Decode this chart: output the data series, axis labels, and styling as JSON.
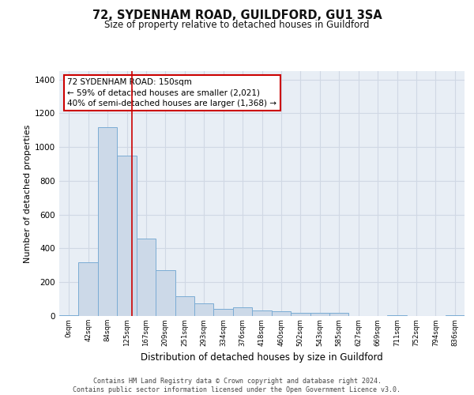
{
  "title": "72, SYDENHAM ROAD, GUILDFORD, GU1 3SA",
  "subtitle": "Size of property relative to detached houses in Guildford",
  "xlabel": "Distribution of detached houses by size in Guildford",
  "ylabel": "Number of detached properties",
  "footer_line1": "Contains HM Land Registry data © Crown copyright and database right 2024.",
  "footer_line2": "Contains public sector information licensed under the Open Government Licence v3.0.",
  "bar_labels": [
    "0sqm",
    "42sqm",
    "84sqm",
    "125sqm",
    "167sqm",
    "209sqm",
    "251sqm",
    "293sqm",
    "334sqm",
    "376sqm",
    "418sqm",
    "460sqm",
    "502sqm",
    "543sqm",
    "585sqm",
    "627sqm",
    "669sqm",
    "711sqm",
    "752sqm",
    "794sqm",
    "836sqm"
  ],
  "bar_values": [
    3,
    320,
    1120,
    950,
    460,
    270,
    115,
    75,
    40,
    50,
    35,
    30,
    20,
    20,
    20,
    0,
    0,
    5,
    0,
    0,
    3
  ],
  "bar_color": "#ccd9e8",
  "bar_edge_color": "#7bacd4",
  "grid_color": "#d0d8e4",
  "bg_color": "#e8eef5",
  "annotation_text": "72 SYDENHAM ROAD: 150sqm\n← 59% of detached houses are smaller (2,021)\n40% of semi-detached houses are larger (1,368) →",
  "annotation_box_facecolor": "#ffffff",
  "annotation_border_color": "#cc0000",
  "vline_color": "#cc0000",
  "vline_x_index": 3.25,
  "ylim": [
    0,
    1450
  ],
  "yticks": [
    0,
    200,
    400,
    600,
    800,
    1000,
    1200,
    1400
  ],
  "title_fontsize": 10.5,
  "subtitle_fontsize": 8.5,
  "ylabel_fontsize": 8,
  "xlabel_fontsize": 8.5
}
